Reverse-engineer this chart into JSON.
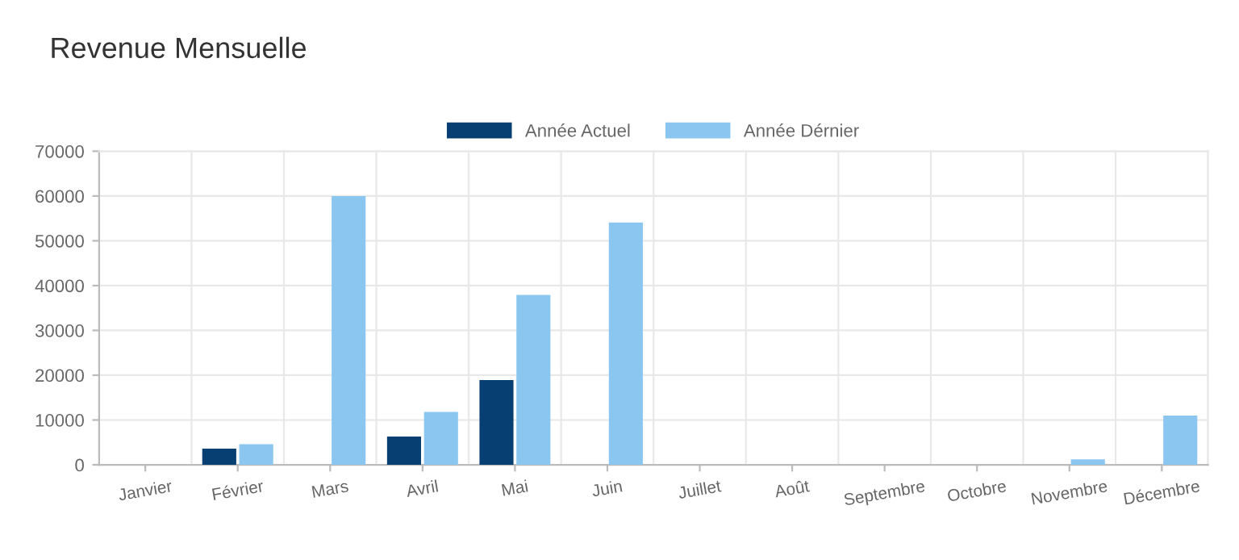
{
  "chart_data": {
    "type": "bar",
    "title": "Revenue Mensuelle",
    "categories": [
      "Janvier",
      "Février",
      "Mars",
      "Avril",
      "Mai",
      "Juin",
      "Juillet",
      "Août",
      "Septembre",
      "Octobre",
      "Novembre",
      "Décembre"
    ],
    "series": [
      {
        "name": "Année Actuel",
        "color": "#073f72",
        "values": [
          0,
          3600,
          0,
          6300,
          18900,
          0,
          0,
          0,
          0,
          0,
          0,
          0
        ]
      },
      {
        "name": "Année Dérnier",
        "color": "#8ac6f0",
        "values": [
          0,
          4600,
          60000,
          11800,
          37900,
          54100,
          null,
          0,
          0,
          0,
          1200,
          11000
        ]
      }
    ],
    "ylim": [
      0,
      70000
    ],
    "yticks": [
      0,
      10000,
      20000,
      30000,
      40000,
      50000,
      60000,
      70000
    ],
    "grid": true,
    "legend": "top"
  }
}
